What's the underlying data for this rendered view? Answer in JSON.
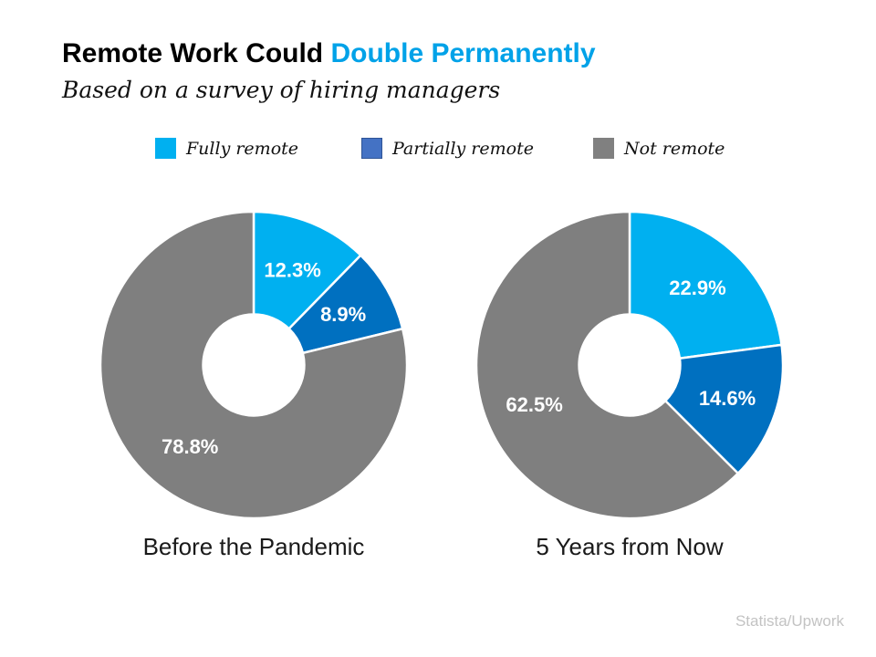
{
  "header": {
    "title_black": "Remote Work Could ",
    "title_accent": "Double Permanently",
    "subtitle": "Based on a survey of hiring managers"
  },
  "legend": {
    "items": [
      {
        "label": "Fully remote",
        "color": "#00B0F0",
        "border": "#00B0F0"
      },
      {
        "label": "Partially remote",
        "color": "#4472C4",
        "border": "#2F5496"
      },
      {
        "label": "Not remote",
        "color": "#808080",
        "border": "#808080"
      }
    ]
  },
  "chart_data": [
    {
      "type": "pie",
      "variant": "donut",
      "title": "Before the Pandemic",
      "categories": [
        "Fully remote",
        "Partially remote",
        "Not remote"
      ],
      "values": [
        12.3,
        8.9,
        78.8
      ],
      "data_labels": [
        "12.3%",
        "8.9%",
        "78.8%"
      ],
      "slice_colors": [
        "#00B0F0",
        "#0070C0",
        "#7F7F7F"
      ],
      "start_angle_deg": 0,
      "direction": "clockwise",
      "hole_ratio": 0.33,
      "data_label_color": "#FFFFFF"
    },
    {
      "type": "pie",
      "variant": "donut",
      "title": "5 Years from Now",
      "categories": [
        "Fully remote",
        "Partially remote",
        "Not remote"
      ],
      "values": [
        22.9,
        14.6,
        62.5
      ],
      "data_labels": [
        "22.9%",
        "14.6%",
        "62.5%"
      ],
      "slice_colors": [
        "#00B0F0",
        "#0070C0",
        "#7F7F7F"
      ],
      "start_angle_deg": 0,
      "direction": "clockwise",
      "hole_ratio": 0.33,
      "data_label_color": "#FFFFFF"
    }
  ],
  "footer": {
    "source": "Statista/Upwork"
  },
  "colors": {
    "title_accent": "#00A2E8",
    "caption_text": "#1A1A1A",
    "footer_text": "#C3C3C3",
    "background": "#FFFFFF"
  }
}
